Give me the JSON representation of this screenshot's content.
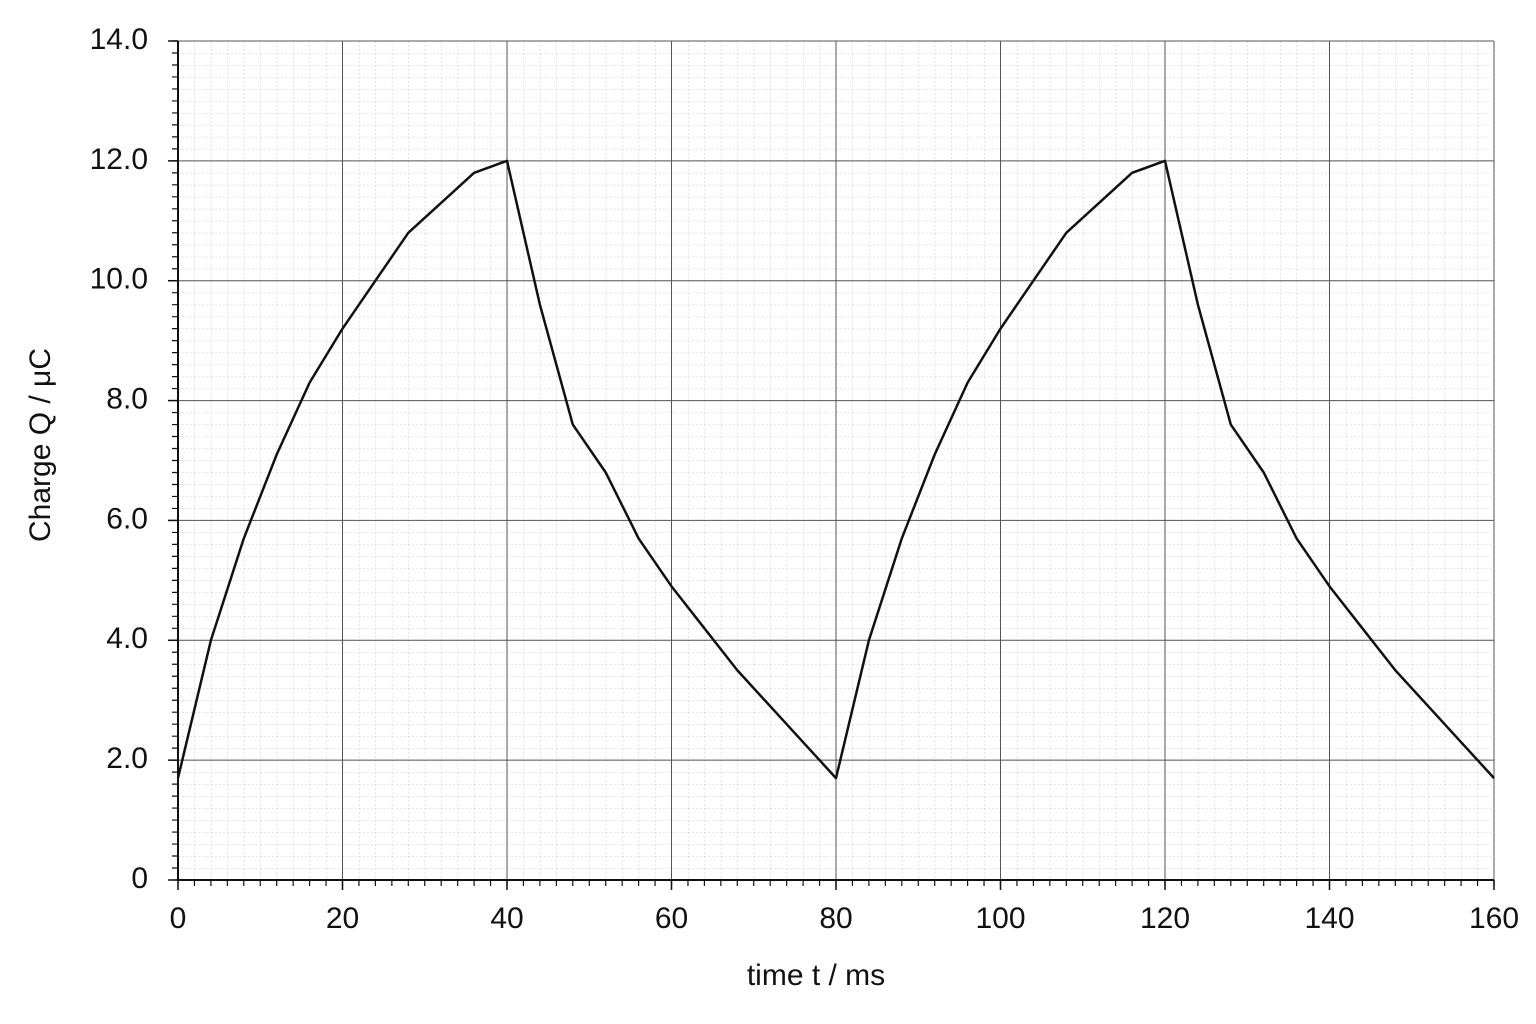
{
  "chart_data": {
    "type": "line",
    "x_label": "time t / ms",
    "y_label": "Charge Q / μC",
    "x": [
      0,
      4,
      8,
      12,
      16,
      20,
      24,
      28,
      32,
      36,
      40,
      44,
      48,
      52,
      56,
      60,
      64,
      68,
      72,
      76,
      80,
      84,
      88,
      92,
      96,
      100,
      104,
      108,
      112,
      116,
      120,
      124,
      128,
      132,
      136,
      140,
      144,
      148,
      152,
      156,
      160
    ],
    "series": [
      {
        "name": "Charge Q",
        "color": "#111111",
        "values": [
          1.7,
          4.0,
          5.7,
          7.1,
          8.3,
          9.2,
          10.0,
          10.8,
          11.3,
          11.8,
          12.0,
          9.6,
          7.6,
          6.8,
          5.7,
          4.9,
          4.2,
          3.5,
          2.9,
          2.3,
          1.7,
          4.0,
          5.7,
          7.1,
          8.3,
          9.2,
          10.0,
          10.8,
          11.3,
          11.8,
          12.0,
          9.6,
          7.6,
          6.8,
          5.7,
          4.9,
          4.2,
          3.5,
          2.9,
          2.3,
          1.7
        ]
      }
    ],
    "xlim": [
      0,
      160
    ],
    "xticks": [
      0,
      20,
      40,
      60,
      80,
      100,
      120,
      140,
      160
    ],
    "ylim": [
      0,
      14
    ],
    "yticks": [
      0,
      {
        "value": 2,
        "label": "2.0"
      },
      {
        "value": 4,
        "label": "4.0"
      },
      {
        "value": 6,
        "label": "6.0"
      },
      {
        "value": 8,
        "label": "8.0"
      },
      {
        "value": 10,
        "label": "10.0"
      },
      {
        "value": 12,
        "label": "12.0"
      },
      {
        "value": 14,
        "label": "14.0"
      }
    ],
    "grid": true
  }
}
